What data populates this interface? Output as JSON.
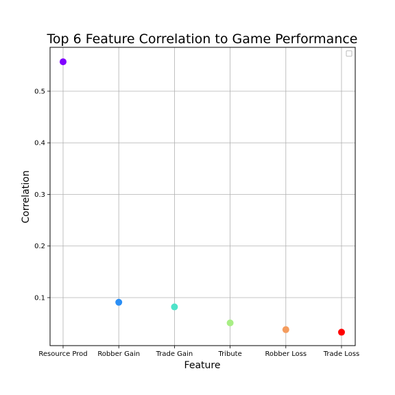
{
  "chart_data": {
    "type": "scatter",
    "title": "Top 6 Feature Correlation to Game Performance",
    "xlabel": "Feature",
    "ylabel": "Correlation",
    "categories": [
      "Resource Prod",
      "Robber Gain",
      "Trade Gain",
      "Tribute",
      "Robber Loss",
      "Trade Loss"
    ],
    "values": [
      0.557,
      0.091,
      0.082,
      0.051,
      0.038,
      0.033
    ],
    "colors": [
      "#8000ff",
      "#2a8ef5",
      "#4fe3c9",
      "#a8ee85",
      "#f49c5e",
      "#ff0000"
    ],
    "ylim": [
      0.007,
      0.585
    ],
    "yticks": [
      0.1,
      0.2,
      0.3,
      0.4,
      0.5
    ],
    "grid": true,
    "legend": {
      "placement": "top-right",
      "entries": []
    }
  }
}
